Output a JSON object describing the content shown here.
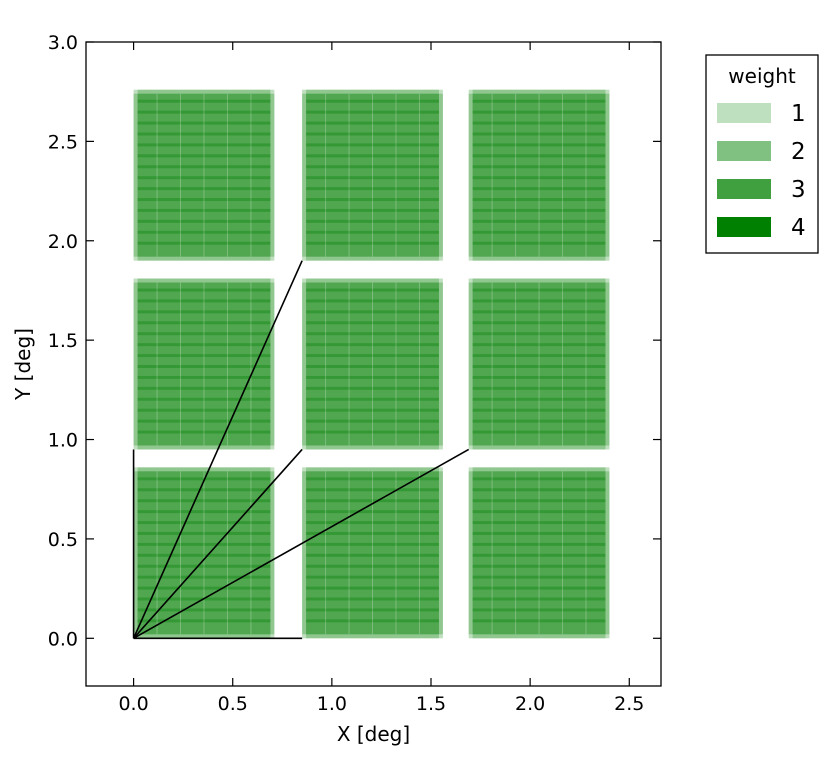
{
  "chart_data": {
    "type": "heatmap",
    "title": "",
    "xlabel": "X  [deg]",
    "ylabel": "Y  [deg]",
    "xlim": [
      -0.24,
      2.66
    ],
    "ylim": [
      -0.24,
      3.0
    ],
    "xticks": [
      "0.0",
      "0.5",
      "1.0",
      "1.5",
      "2.0",
      "2.5"
    ],
    "yticks": [
      "0.0",
      "0.5",
      "1.0",
      "1.5",
      "2.0",
      "2.5",
      "3.0"
    ],
    "grid": false,
    "legend": {
      "title": "weight",
      "placement": "outside-top-right",
      "entries": [
        {
          "label": "1",
          "color": "#bfe0bf"
        },
        {
          "label": "2",
          "color": "#80c080"
        },
        {
          "label": "3",
          "color": "#40a040"
        },
        {
          "label": "4",
          "color": "#008000"
        }
      ]
    },
    "series_color": "#008000",
    "tiles": {
      "x_ranges": [
        [
          0.0,
          0.71
        ],
        [
          0.85,
          1.56
        ],
        [
          1.69,
          2.4
        ]
      ],
      "y_ranges": [
        [
          0.0,
          0.86
        ],
        [
          0.95,
          1.81
        ],
        [
          1.9,
          2.76
        ]
      ],
      "dither_step": 0.02
    },
    "lines": [
      {
        "x": [
          0.0,
          0.0
        ],
        "y": [
          0.0,
          0.95
        ]
      },
      {
        "x": [
          0.0,
          0.85
        ],
        "y": [
          0.0,
          0.0
        ]
      },
      {
        "x": [
          0.0,
          0.85
        ],
        "y": [
          0.0,
          1.9
        ]
      },
      {
        "x": [
          0.0,
          0.85
        ],
        "y": [
          0.0,
          0.95
        ]
      },
      {
        "x": [
          0.0,
          1.69
        ],
        "y": [
          0.0,
          0.95
        ]
      }
    ]
  }
}
